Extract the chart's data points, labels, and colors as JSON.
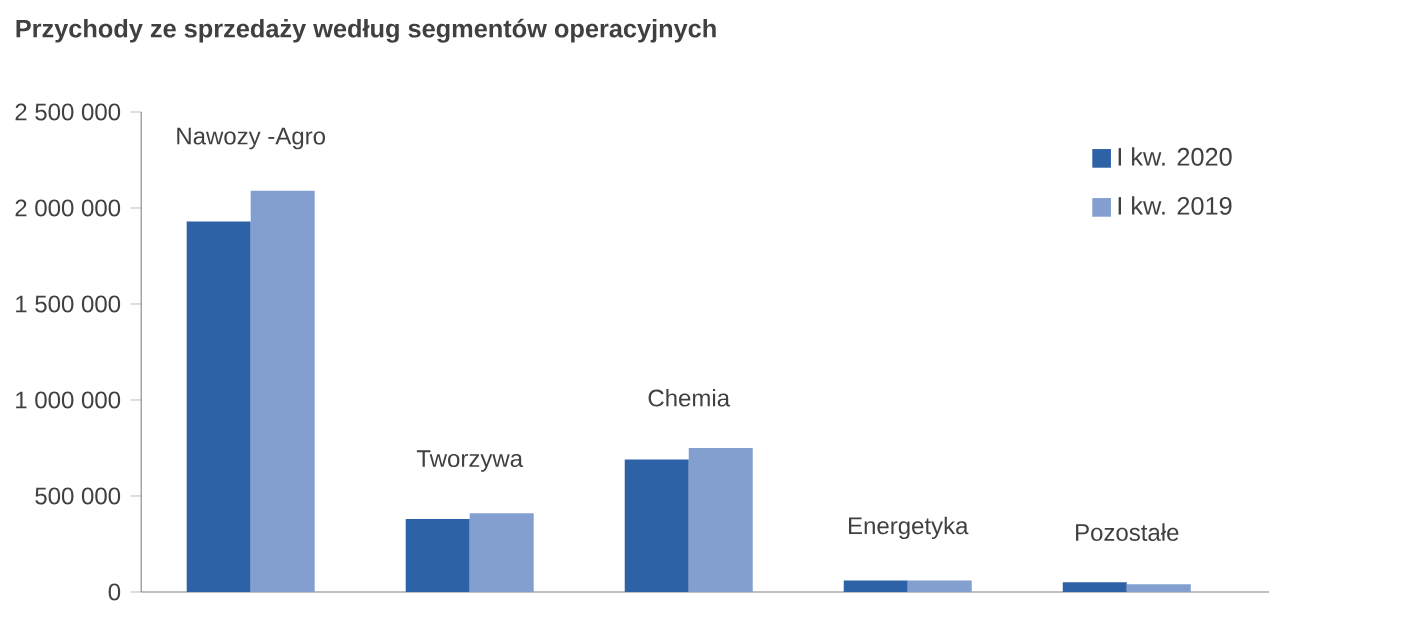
{
  "chart_data": {
    "type": "bar",
    "title": "Przychody ze sprzedaży według segmentów operacyjnych",
    "categories": [
      "Nawozy -Agro",
      "Tworzywa",
      "Chemia",
      "Energetyka",
      "Pozostałe"
    ],
    "series": [
      {
        "name": "I kw. 2020",
        "color": "#2e62a6",
        "values": [
          1930000,
          380000,
          690000,
          60000,
          50000
        ]
      },
      {
        "name": "I kw. 2019",
        "color": "#829fd0",
        "values": [
          2090000,
          410000,
          750000,
          60000,
          40000
        ]
      }
    ],
    "ylim": [
      0,
      2500000
    ],
    "yticks": [
      {
        "value": 0,
        "label": "0"
      },
      {
        "value": 500000,
        "label": "500 000"
      },
      {
        "value": 1000000,
        "label": "1 000 000"
      },
      {
        "value": 1500000,
        "label": "1 500 000"
      },
      {
        "value": 2000000,
        "label": "2 000 000"
      },
      {
        "value": 2500000,
        "label": "2 500 000"
      }
    ],
    "grid": false,
    "legend": "top right"
  }
}
